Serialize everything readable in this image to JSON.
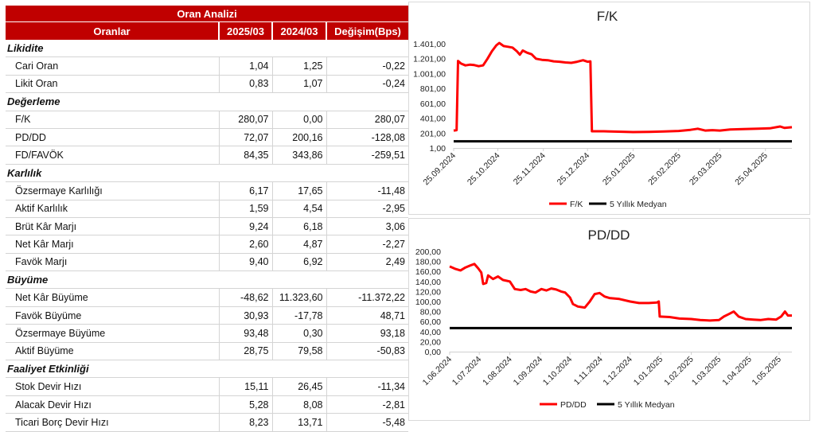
{
  "table": {
    "title": "Oran Analizi",
    "headers": [
      "Oranlar",
      "2025/03",
      "2024/03",
      "Değişim(Bps)"
    ],
    "sections": [
      {
        "name": "Likidite",
        "rows": [
          {
            "label": "Cari Oran",
            "v1": "1,04",
            "v2": "1,25",
            "v3": "-0,22"
          },
          {
            "label": "Likit Oran",
            "v1": "0,83",
            "v2": "1,07",
            "v3": "-0,24"
          }
        ]
      },
      {
        "name": "Değerleme",
        "rows": [
          {
            "label": "F/K",
            "v1": "280,07",
            "v2": "0,00",
            "v3": "280,07"
          },
          {
            "label": "PD/DD",
            "v1": "72,07",
            "v2": "200,16",
            "v3": "-128,08"
          },
          {
            "label": "FD/FAVÖK",
            "v1": "84,35",
            "v2": "343,86",
            "v3": "-259,51"
          }
        ]
      },
      {
        "name": "Karlılık",
        "rows": [
          {
            "label": "Özsermaye Karlılığı",
            "v1": "6,17",
            "v2": "17,65",
            "v3": "-11,48"
          },
          {
            "label": "Aktif Karlılık",
            "v1": "1,59",
            "v2": "4,54",
            "v3": "-2,95"
          },
          {
            "label": "Brüt Kâr Marjı",
            "v1": "9,24",
            "v2": "6,18",
            "v3": "3,06"
          },
          {
            "label": "Net Kâr Marjı",
            "v1": "2,60",
            "v2": "4,87",
            "v3": "-2,27"
          },
          {
            "label": "Favök Marjı",
            "v1": "9,40",
            "v2": "6,92",
            "v3": "2,49"
          }
        ]
      },
      {
        "name": "Büyüme",
        "rows": [
          {
            "label": "Net Kâr Büyüme",
            "v1": "-48,62",
            "v2": "11.323,60",
            "v3": "-11.372,22"
          },
          {
            "label": "Favök Büyüme",
            "v1": "30,93",
            "v2": "-17,78",
            "v3": "48,71"
          },
          {
            "label": "Özsermaye Büyüme",
            "v1": "93,48",
            "v2": "0,30",
            "v3": "93,18"
          },
          {
            "label": "Aktif Büyüme",
            "v1": "28,75",
            "v2": "79,58",
            "v3": "-50,83"
          }
        ]
      },
      {
        "name": "Faaliyet Etkinliği",
        "rows": [
          {
            "label": "Stok Devir Hızı",
            "v1": "15,11",
            "v2": "26,45",
            "v3": "-11,34"
          },
          {
            "label": "Alacak Devir Hızı",
            "v1": "5,28",
            "v2": "8,08",
            "v3": "-2,81"
          },
          {
            "label": "Ticari Borç Devir Hızı",
            "v1": "8,23",
            "v2": "13,71",
            "v3": "-5,48"
          }
        ]
      }
    ]
  },
  "colors": {
    "accent": "#c00000",
    "series": "#ff0000",
    "median": "#000000"
  },
  "chart_data": [
    {
      "type": "line",
      "title": "F/K",
      "ylim": [
        1,
        1401
      ],
      "yticks": [
        "1.401,00",
        "1.201,00",
        "1.001,00",
        "801,00",
        "601,00",
        "401,00",
        "201,00",
        "1,00"
      ],
      "xticks": [
        "25.09.2024",
        "25.10.2024",
        "25.11.2024",
        "25.12.2024",
        "25.01.2025",
        "25.02.2025",
        "25.03.2025",
        "25.04.2025"
      ],
      "grid": false,
      "legend_position": "bottom",
      "series": [
        {
          "name": "F/K",
          "points": [
            [
              "2024-09-25",
              235
            ],
            [
              "2024-09-27",
              240
            ],
            [
              "2024-09-28",
              1170
            ],
            [
              "2024-09-30",
              1135
            ],
            [
              "2024-10-03",
              1110
            ],
            [
              "2024-10-06",
              1120
            ],
            [
              "2024-10-09",
              1115
            ],
            [
              "2024-10-12",
              1100
            ],
            [
              "2024-10-15",
              1110
            ],
            [
              "2024-10-18",
              1200
            ],
            [
              "2024-10-21",
              1300
            ],
            [
              "2024-10-24",
              1380
            ],
            [
              "2024-10-26",
              1412
            ],
            [
              "2024-10-29",
              1370
            ],
            [
              "2024-11-01",
              1360
            ],
            [
              "2024-11-04",
              1350
            ],
            [
              "2024-11-07",
              1300
            ],
            [
              "2024-11-09",
              1255
            ],
            [
              "2024-11-11",
              1310
            ],
            [
              "2024-11-14",
              1280
            ],
            [
              "2024-11-17",
              1260
            ],
            [
              "2024-11-20",
              1200
            ],
            [
              "2024-11-24",
              1185
            ],
            [
              "2024-11-28",
              1180
            ],
            [
              "2024-12-02",
              1165
            ],
            [
              "2024-12-06",
              1160
            ],
            [
              "2024-12-10",
              1150
            ],
            [
              "2024-12-14",
              1145
            ],
            [
              "2024-12-18",
              1160
            ],
            [
              "2024-12-22",
              1180
            ],
            [
              "2024-12-25",
              1160
            ],
            [
              "2024-12-27",
              1165
            ],
            [
              "2024-12-28",
              225
            ],
            [
              "2025-01-05",
              225
            ],
            [
              "2025-01-15",
              220
            ],
            [
              "2025-01-25",
              215
            ],
            [
              "2025-02-05",
              218
            ],
            [
              "2025-02-15",
              222
            ],
            [
              "2025-02-25",
              230
            ],
            [
              "2025-03-05",
              245
            ],
            [
              "2025-03-10",
              260
            ],
            [
              "2025-03-15",
              235
            ],
            [
              "2025-03-20",
              240
            ],
            [
              "2025-03-25",
              235
            ],
            [
              "2025-04-01",
              250
            ],
            [
              "2025-04-10",
              255
            ],
            [
              "2025-04-20",
              260
            ],
            [
              "2025-04-28",
              265
            ],
            [
              "2025-05-05",
              290
            ],
            [
              "2025-05-08",
              270
            ],
            [
              "2025-05-13",
              280
            ]
          ]
        },
        {
          "name": "5 Yıllık Medyan",
          "value": 90
        }
      ]
    },
    {
      "type": "line",
      "title": "PD/DD",
      "ylim": [
        0,
        200
      ],
      "yticks": [
        "200,00",
        "180,00",
        "160,00",
        "140,00",
        "120,00",
        "100,00",
        "80,00",
        "60,00",
        "40,00",
        "20,00",
        "0,00"
      ],
      "xticks": [
        "1.06.2024",
        "1.07.2024",
        "1.08.2024",
        "1.09.2024",
        "1.10.2024",
        "1.11.2024",
        "1.12.2024",
        "1.01.2025",
        "1.02.2025",
        "1.03.2025",
        "1.04.2025",
        "1.05.2025"
      ],
      "grid": false,
      "legend_position": "bottom",
      "series": [
        {
          "name": "PD/DD",
          "points": [
            [
              "2024-06-01",
              170
            ],
            [
              "2024-06-07",
              165
            ],
            [
              "2024-06-12",
              162
            ],
            [
              "2024-06-17",
              168
            ],
            [
              "2024-06-22",
              172
            ],
            [
              "2024-06-26",
              175
            ],
            [
              "2024-06-30",
              166
            ],
            [
              "2024-07-03",
              158
            ],
            [
              "2024-07-05",
              135
            ],
            [
              "2024-07-08",
              137
            ],
            [
              "2024-07-10",
              152
            ],
            [
              "2024-07-15",
              145
            ],
            [
              "2024-07-20",
              150
            ],
            [
              "2024-07-25",
              143
            ],
            [
              "2024-08-01",
              140
            ],
            [
              "2024-08-06",
              125
            ],
            [
              "2024-08-12",
              123
            ],
            [
              "2024-08-17",
              125
            ],
            [
              "2024-08-22",
              120
            ],
            [
              "2024-08-27",
              118
            ],
            [
              "2024-09-02",
              125
            ],
            [
              "2024-09-07",
              122
            ],
            [
              "2024-09-12",
              126
            ],
            [
              "2024-09-17",
              124
            ],
            [
              "2024-09-22",
              120
            ],
            [
              "2024-09-26",
              118
            ],
            [
              "2024-10-01",
              108
            ],
            [
              "2024-10-04",
              95
            ],
            [
              "2024-10-09",
              90
            ],
            [
              "2024-10-16",
              88
            ],
            [
              "2024-10-21",
              100
            ],
            [
              "2024-10-26",
              115
            ],
            [
              "2024-10-31",
              117
            ],
            [
              "2024-11-05",
              110
            ],
            [
              "2024-11-10",
              107
            ],
            [
              "2024-11-20",
              105
            ],
            [
              "2024-12-01",
              100
            ],
            [
              "2024-12-10",
              97
            ],
            [
              "2024-12-20",
              97
            ],
            [
              "2024-12-28",
              98
            ],
            [
              "2024-12-30",
              100
            ],
            [
              "2024-12-31",
              70
            ],
            [
              "2025-01-10",
              69
            ],
            [
              "2025-01-20",
              66
            ],
            [
              "2025-02-01",
              65
            ],
            [
              "2025-02-10",
              63
            ],
            [
              "2025-02-20",
              62
            ],
            [
              "2025-03-01",
              63
            ],
            [
              "2025-03-06",
              70
            ],
            [
              "2025-03-11",
              75
            ],
            [
              "2025-03-16",
              80
            ],
            [
              "2025-03-21",
              70
            ],
            [
              "2025-03-28",
              65
            ],
            [
              "2025-04-05",
              64
            ],
            [
              "2025-04-12",
              63
            ],
            [
              "2025-04-20",
              65
            ],
            [
              "2025-04-28",
              64
            ],
            [
              "2025-05-03",
              70
            ],
            [
              "2025-05-07",
              80
            ],
            [
              "2025-05-10",
              72
            ],
            [
              "2025-05-14",
              72
            ]
          ]
        },
        {
          "name": "5 Yıllık Medyan",
          "value": 47
        }
      ]
    }
  ]
}
